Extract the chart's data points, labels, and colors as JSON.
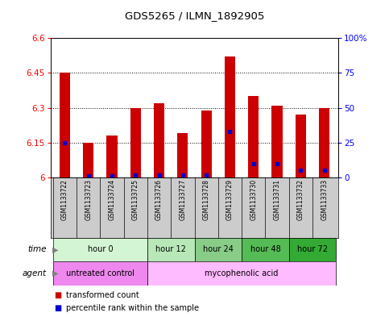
{
  "title": "GDS5265 / ILMN_1892905",
  "samples": [
    "GSM1133722",
    "GSM1133723",
    "GSM1133724",
    "GSM1133725",
    "GSM1133726",
    "GSM1133727",
    "GSM1133728",
    "GSM1133729",
    "GSM1133730",
    "GSM1133731",
    "GSM1133732",
    "GSM1133733"
  ],
  "transformed_count": [
    6.45,
    6.15,
    6.18,
    6.3,
    6.32,
    6.19,
    6.29,
    6.52,
    6.35,
    6.31,
    6.27,
    6.3
  ],
  "percentile_rank": [
    25,
    1,
    1,
    2,
    2,
    2,
    2,
    33,
    10,
    10,
    5,
    5
  ],
  "ymin": 6.0,
  "ymax": 6.6,
  "y_ticks": [
    6.0,
    6.15,
    6.3,
    6.45,
    6.6
  ],
  "y_tick_labels": [
    "6",
    "6.15",
    "6.3",
    "6.45",
    "6.6"
  ],
  "right_yticks": [
    0,
    25,
    50,
    75,
    100
  ],
  "right_ytick_labels": [
    "0",
    "25",
    "50",
    "75",
    "100%"
  ],
  "bar_color": "#cc0000",
  "dot_color": "#0000cc",
  "time_groups": [
    {
      "label": "hour 0",
      "start": 0,
      "end": 3,
      "color": "#d4f5d4"
    },
    {
      "label": "hour 12",
      "start": 4,
      "end": 5,
      "color": "#b8e8b8"
    },
    {
      "label": "hour 24",
      "start": 6,
      "end": 7,
      "color": "#88cc88"
    },
    {
      "label": "hour 48",
      "start": 8,
      "end": 9,
      "color": "#55bb55"
    },
    {
      "label": "hour 72",
      "start": 10,
      "end": 11,
      "color": "#33aa33"
    }
  ],
  "agent_groups": [
    {
      "label": "untreated control",
      "start": 0,
      "end": 3,
      "color": "#ee88ee"
    },
    {
      "label": "mycophenolic acid",
      "start": 4,
      "end": 11,
      "color": "#ffbbff"
    }
  ],
  "legend_items": [
    {
      "label": "transformed count",
      "color": "#cc0000"
    },
    {
      "label": "percentile rank within the sample",
      "color": "#0000cc"
    }
  ],
  "grid_color": "#000000",
  "bg_color": "#ffffff",
  "sample_bg": "#cccccc"
}
